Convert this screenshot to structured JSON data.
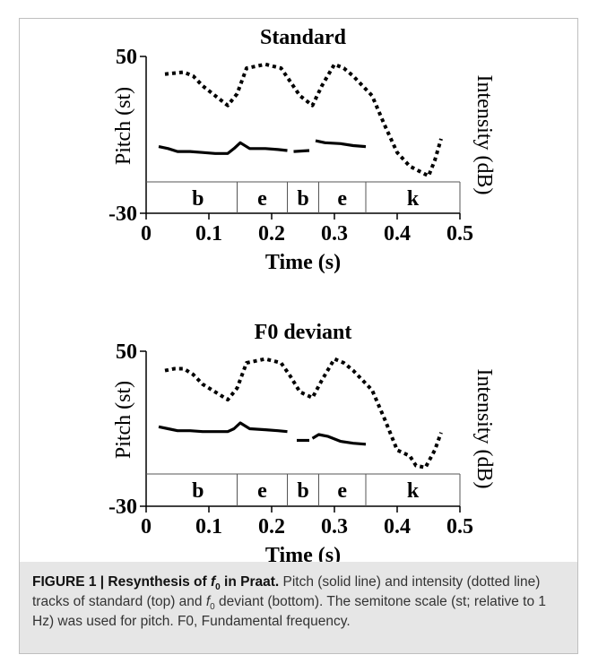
{
  "chart_data": [
    {
      "type": "line",
      "title": "Standard",
      "xlabel": "Time (s)",
      "ylabel_left": "Pitch (st)",
      "ylabel_right": "Intensity (dB)",
      "xlim": [
        0,
        0.5
      ],
      "ylim": [
        -30,
        50
      ],
      "xticks": [
        "0",
        "0.1",
        "0.2",
        "0.3",
        "0.4",
        "0.5"
      ],
      "yticks": [
        "50",
        "-30"
      ],
      "segments": [
        {
          "label": "b",
          "start": 0.02,
          "end": 0.145
        },
        {
          "label": "e",
          "start": 0.145,
          "end": 0.225
        },
        {
          "label": "b",
          "start": 0.225,
          "end": 0.275
        },
        {
          "label": "e",
          "start": 0.275,
          "end": 0.35
        },
        {
          "label": "k",
          "start": 0.35,
          "end": 0.5
        }
      ],
      "series": [
        {
          "name": "Pitch",
          "style": "solid",
          "segments": [
            [
              [
                0.02,
                4
              ],
              [
                0.035,
                3
              ],
              [
                0.05,
                1.5
              ],
              [
                0.07,
                1.5
              ],
              [
                0.09,
                1
              ],
              [
                0.11,
                0.5
              ],
              [
                0.13,
                0.5
              ],
              [
                0.14,
                3
              ],
              [
                0.15,
                6
              ],
              [
                0.165,
                3
              ],
              [
                0.19,
                3
              ],
              [
                0.21,
                2.5
              ],
              [
                0.225,
                2
              ]
            ],
            [
              [
                0.235,
                1.5
              ],
              [
                0.26,
                2
              ]
            ],
            [
              [
                0.27,
                7
              ],
              [
                0.285,
                6
              ],
              [
                0.31,
                5.5
              ],
              [
                0.33,
                4.5
              ],
              [
                0.35,
                4
              ]
            ]
          ]
        },
        {
          "name": "Intensity",
          "style": "dotted",
          "segments": [
            [
              [
                0.03,
                41
              ],
              [
                0.045,
                41.5
              ],
              [
                0.06,
                42
              ],
              [
                0.075,
                40
              ],
              [
                0.09,
                35
              ],
              [
                0.11,
                30
              ],
              [
                0.13,
                25
              ],
              [
                0.145,
                31
              ],
              [
                0.16,
                44
              ],
              [
                0.19,
                46
              ],
              [
                0.215,
                44
              ],
              [
                0.23,
                37
              ],
              [
                0.245,
                30
              ],
              [
                0.265,
                25
              ],
              [
                0.28,
                35
              ],
              [
                0.3,
                46
              ],
              [
                0.315,
                44
              ],
              [
                0.33,
                40
              ],
              [
                0.36,
                30
              ],
              [
                0.38,
                15
              ],
              [
                0.4,
                1
              ],
              [
                0.42,
                -6
              ],
              [
                0.45,
                -11
              ],
              [
                0.46,
                -3
              ],
              [
                0.47,
                8
              ]
            ]
          ]
        }
      ]
    },
    {
      "type": "line",
      "title": "F0 deviant",
      "xlabel": "Time (s)",
      "ylabel_left": "Pitch (st)",
      "ylabel_right": "Intensity (dB)",
      "xlim": [
        0,
        0.5
      ],
      "ylim": [
        -30,
        50
      ],
      "xticks": [
        "0",
        "0.1",
        "0.2",
        "0.3",
        "0.4",
        "0.5"
      ],
      "yticks": [
        "50",
        "-30"
      ],
      "segments": [
        {
          "label": "b",
          "start": 0.02,
          "end": 0.145
        },
        {
          "label": "e",
          "start": 0.145,
          "end": 0.225
        },
        {
          "label": "b",
          "start": 0.225,
          "end": 0.275
        },
        {
          "label": "e",
          "start": 0.275,
          "end": 0.35
        },
        {
          "label": "k",
          "start": 0.35,
          "end": 0.5
        }
      ],
      "series": [
        {
          "name": "Pitch",
          "style": "solid",
          "segments": [
            [
              [
                0.02,
                11
              ],
              [
                0.035,
                10
              ],
              [
                0.05,
                9
              ],
              [
                0.07,
                9
              ],
              [
                0.09,
                8.5
              ],
              [
                0.11,
                8.5
              ],
              [
                0.13,
                8.5
              ],
              [
                0.14,
                10
              ],
              [
                0.15,
                13
              ],
              [
                0.165,
                10
              ],
              [
                0.19,
                9.5
              ],
              [
                0.21,
                9
              ],
              [
                0.225,
                8.5
              ]
            ],
            [
              [
                0.24,
                4
              ],
              [
                0.26,
                4
              ]
            ],
            [
              [
                0.265,
                5
              ],
              [
                0.275,
                7
              ],
              [
                0.29,
                6
              ],
              [
                0.31,
                3.5
              ],
              [
                0.33,
                2.5
              ],
              [
                0.35,
                2
              ]
            ]
          ]
        },
        {
          "name": "Intensity",
          "style": "dotted",
          "segments": [
            [
              [
                0.03,
                40
              ],
              [
                0.045,
                41
              ],
              [
                0.06,
                41
              ],
              [
                0.075,
                38
              ],
              [
                0.09,
                33
              ],
              [
                0.11,
                29
              ],
              [
                0.13,
                25
              ],
              [
                0.145,
                31
              ],
              [
                0.16,
                44
              ],
              [
                0.19,
                46
              ],
              [
                0.215,
                44
              ],
              [
                0.23,
                37
              ],
              [
                0.245,
                29
              ],
              [
                0.265,
                26
              ],
              [
                0.28,
                35
              ],
              [
                0.3,
                46
              ],
              [
                0.315,
                44
              ],
              [
                0.33,
                40
              ],
              [
                0.36,
                30
              ],
              [
                0.38,
                15
              ],
              [
                0.4,
                -1
              ],
              [
                0.42,
                -4
              ],
              [
                0.43,
                -9
              ],
              [
                0.445,
                -10
              ],
              [
                0.46,
                -1
              ],
              [
                0.47,
                8
              ]
            ]
          ]
        }
      ]
    }
  ],
  "caption": {
    "lead_prefix": "FIGURE 1 | Resynthesis of ",
    "lead_var": "f",
    "lead_sub": "0",
    "lead_suffix": " in Praat.",
    "text_part1": " Pitch (solid line) and intensity (dotted line) tracks of standard (top) and ",
    "text_var": "f",
    "text_sub": "0",
    "text_part2": " deviant (bottom). The semitone scale (st; relative to 1 Hz) was used for pitch. F0, Fundamental frequency."
  }
}
